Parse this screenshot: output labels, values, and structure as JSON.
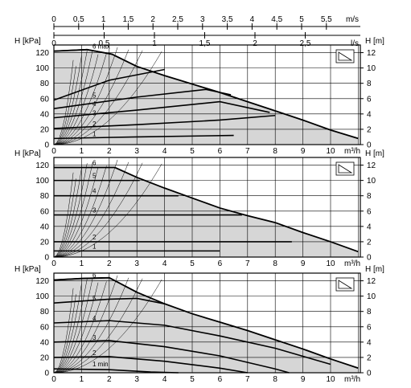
{
  "colors": {
    "shade": "#d6d6d6",
    "grid": "#000000",
    "curve": "#000000"
  },
  "top_axes": {
    "ms_ticks": [
      "0",
      "0,5",
      "1",
      "1,5",
      "2",
      "2,5",
      "3",
      "3,5",
      "4",
      "4,5",
      "5",
      "5,5"
    ],
    "ms_unit": "m/s",
    "ls_ticks": [
      "0",
      "0,5",
      "1",
      "1,5",
      "2",
      "2,5"
    ],
    "ls_unit": "l/s"
  },
  "chart_data": [
    {
      "type": "line",
      "panel_icon": "proportional-pressure-icon",
      "xlabel": "m³/h",
      "ylabel_left": "H [kPa]",
      "ylabel_right": "H [m]",
      "xlim": [
        0,
        11
      ],
      "ylim": [
        0,
        130
      ],
      "x_ticks": [
        "0",
        "1",
        "2",
        "3",
        "4",
        "5",
        "6",
        "7",
        "8",
        "9",
        "10"
      ],
      "y_left_ticks": [
        "0",
        "20",
        "40",
        "60",
        "80",
        "100",
        "120"
      ],
      "y_right_ticks": [
        "0",
        "2",
        "4",
        "6",
        "8",
        "10",
        "12"
      ],
      "max_curve": [
        [
          0,
          122
        ],
        [
          1.2,
          124
        ],
        [
          2.1,
          118
        ],
        [
          3,
          102
        ],
        [
          4,
          90
        ],
        [
          5,
          79
        ],
        [
          6,
          68
        ],
        [
          7,
          56
        ],
        [
          8,
          44
        ],
        [
          9,
          32
        ],
        [
          10,
          19
        ],
        [
          11,
          8
        ]
      ],
      "settings": [
        {
          "label": "1",
          "points": [
            [
              0,
              8
            ],
            [
              3,
              10
            ],
            [
              6.5,
              12
            ]
          ]
        },
        {
          "label": "2",
          "points": [
            [
              0,
              21
            ],
            [
              3,
              26
            ],
            [
              6,
              32
            ],
            [
              8,
              38
            ]
          ]
        },
        {
          "label": "3",
          "points": [
            [
              0,
              35
            ],
            [
              3,
              45
            ],
            [
              6,
              56
            ],
            [
              7.8,
              42
            ]
          ]
        },
        {
          "label": "4",
          "points": [
            [
              0,
              47
            ],
            [
              3,
              62
            ],
            [
              5.5,
              72
            ],
            [
              6.4,
              65
            ]
          ]
        },
        {
          "label": "5",
          "points": [
            [
              0,
              58
            ],
            [
              2,
              84
            ],
            [
              4,
              98
            ]
          ]
        },
        {
          "label": "6 max",
          "points": [
            [
              0,
              122
            ],
            [
              1.2,
              124
            ],
            [
              2.1,
              118
            ],
            [
              3,
              102
            ]
          ]
        }
      ]
    },
    {
      "type": "line",
      "panel_icon": "constant-pressure-icon",
      "xlabel": "m³/h",
      "ylabel_left": "H [kPa]",
      "ylabel_right": "H [m]",
      "xlim": [
        0,
        11
      ],
      "ylim": [
        0,
        130
      ],
      "x_ticks": [
        "0",
        "1",
        "2",
        "3",
        "4",
        "5",
        "6",
        "7",
        "8",
        "9",
        "10"
      ],
      "y_left_ticks": [
        "0",
        "20",
        "40",
        "60",
        "80",
        "100",
        "120"
      ],
      "y_right_ticks": [
        "0",
        "2",
        "4",
        "6",
        "8",
        "10",
        "12"
      ],
      "max_curve": [
        [
          0,
          117
        ],
        [
          2.2,
          117
        ],
        [
          3,
          104
        ],
        [
          4,
          90
        ],
        [
          5,
          77
        ],
        [
          6,
          64
        ],
        [
          7,
          54
        ],
        [
          8,
          45
        ],
        [
          9,
          32
        ],
        [
          10,
          20
        ],
        [
          11,
          7
        ]
      ],
      "settings": [
        {
          "label": "1",
          "points": [
            [
              0,
              8
            ],
            [
              6,
              8
            ]
          ]
        },
        {
          "label": "2",
          "points": [
            [
              0,
              20
            ],
            [
              8.6,
              20
            ]
          ]
        },
        {
          "label": "3",
          "points": [
            [
              0,
              55
            ],
            [
              6.8,
              55
            ]
          ]
        },
        {
          "label": "4",
          "points": [
            [
              0,
              80
            ],
            [
              4.5,
              80
            ]
          ]
        },
        {
          "label": "5",
          "points": [
            [
              0,
              100
            ],
            [
              3.1,
              100
            ]
          ]
        },
        {
          "label": "6",
          "points": [
            [
              0,
              117
            ],
            [
              2.2,
              117
            ]
          ]
        }
      ]
    },
    {
      "type": "line",
      "panel_icon": "constant-speed-icon",
      "xlabel": "m³/h",
      "ylabel_left": "H [kPa]",
      "ylabel_right": "H [m]",
      "xlim": [
        0,
        11
      ],
      "ylim": [
        0,
        130
      ],
      "x_ticks": [
        "0",
        "1",
        "2",
        "3",
        "4",
        "5",
        "6",
        "7",
        "8",
        "9",
        "10"
      ],
      "y_left_ticks": [
        "0",
        "20",
        "40",
        "60",
        "80",
        "100",
        "120"
      ],
      "y_right_ticks": [
        "0",
        "2",
        "4",
        "6",
        "8",
        "10",
        "12"
      ],
      "max_curve": [
        [
          0,
          121
        ],
        [
          1,
          123
        ],
        [
          2,
          124
        ],
        [
          3,
          105
        ],
        [
          4,
          90
        ],
        [
          5,
          77
        ],
        [
          6,
          66
        ],
        [
          7,
          55
        ],
        [
          8,
          43
        ],
        [
          9,
          31
        ],
        [
          10,
          18
        ],
        [
          11,
          6
        ]
      ],
      "settings": [
        {
          "label": "1 min",
          "points": [
            [
              0,
              5
            ],
            [
              2,
              4
            ],
            [
              3.5,
              1
            ],
            [
              4.5,
              0
            ]
          ]
        },
        {
          "label": "2",
          "points": [
            [
              0,
              20
            ],
            [
              2,
              21
            ],
            [
              4,
              15
            ],
            [
              6,
              6
            ],
            [
              7,
              0
            ]
          ]
        },
        {
          "label": "3",
          "points": [
            [
              0,
              40
            ],
            [
              2,
              42
            ],
            [
              4,
              34
            ],
            [
              6,
              22
            ],
            [
              8,
              5
            ],
            [
              8.5,
              0
            ]
          ]
        },
        {
          "label": "4",
          "points": [
            [
              0,
              65
            ],
            [
              2,
              68
            ],
            [
              4,
              62
            ],
            [
              6,
              48
            ],
            [
              8,
              32
            ],
            [
              10,
              11
            ]
          ]
        },
        {
          "label": "5",
          "points": [
            [
              0,
              91
            ],
            [
              2,
              96
            ],
            [
              3,
              97
            ],
            [
              4,
              90
            ]
          ]
        },
        {
          "label": "6",
          "points": [
            [
              0,
              121
            ],
            [
              1,
              123
            ],
            [
              2,
              124
            ],
            [
              3,
              105
            ]
          ]
        }
      ]
    }
  ]
}
